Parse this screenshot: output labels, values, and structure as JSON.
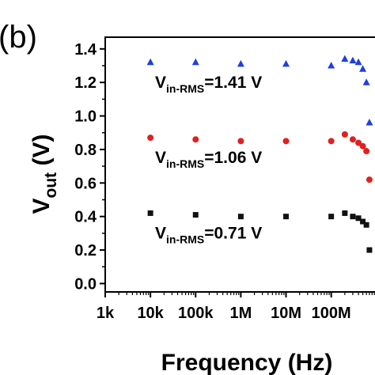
{
  "chart_data": {
    "type": "scatter",
    "panel_label": "(b)",
    "xlabel": "Frequency (Hz)",
    "ylabel_main": "V",
    "ylabel_sub": "out",
    "ylabel_unit": " (V)",
    "xscale": "log",
    "xlim": [
      1000,
      2000000000
    ],
    "ylim": [
      -0.05,
      1.47
    ],
    "x_ticks": [
      {
        "value": 1000,
        "label": "1k"
      },
      {
        "value": 10000,
        "label": "10k"
      },
      {
        "value": 100000,
        "label": "100k"
      },
      {
        "value": 1000000,
        "label": "1M"
      },
      {
        "value": 10000000,
        "label": "10M"
      },
      {
        "value": 100000000,
        "label": "100M"
      }
    ],
    "y_ticks": [
      0.0,
      0.2,
      0.4,
      0.6,
      0.8,
      1.0,
      1.2,
      1.4
    ],
    "y_tick_labels": [
      "0.0",
      "0.2",
      "0.4",
      "0.6",
      "0.8",
      "1.0",
      "1.2",
      "1.4"
    ],
    "grid": false,
    "series": [
      {
        "marker": "triangle",
        "color": "#1f3fe0",
        "annotation": {
          "main": "V",
          "sub": "in-RMS",
          "value": "=1.41 V"
        },
        "points": [
          [
            10000,
            1.32
          ],
          [
            100000,
            1.32
          ],
          [
            1000000,
            1.31
          ],
          [
            10000000,
            1.31
          ],
          [
            100000000,
            1.3
          ],
          [
            200000000,
            1.34
          ],
          [
            300000000,
            1.33
          ],
          [
            400000000,
            1.32
          ],
          [
            500000000,
            1.28
          ],
          [
            600000000,
            1.2
          ],
          [
            700000000,
            0.96
          ]
        ]
      },
      {
        "marker": "circle",
        "color": "#e02020",
        "annotation": {
          "main": "V",
          "sub": "in-RMS",
          "value": "=1.06 V"
        },
        "points": [
          [
            10000,
            0.87
          ],
          [
            100000,
            0.86
          ],
          [
            1000000,
            0.85
          ],
          [
            10000000,
            0.85
          ],
          [
            100000000,
            0.85
          ],
          [
            200000000,
            0.89
          ],
          [
            300000000,
            0.86
          ],
          [
            400000000,
            0.84
          ],
          [
            500000000,
            0.82
          ],
          [
            600000000,
            0.79
          ],
          [
            700000000,
            0.62
          ]
        ]
      },
      {
        "marker": "square",
        "color": "#111111",
        "annotation": {
          "main": "V",
          "sub": "in-RMS",
          "value": "=0.71 V"
        },
        "points": [
          [
            10000,
            0.42
          ],
          [
            100000,
            0.41
          ],
          [
            1000000,
            0.4
          ],
          [
            10000000,
            0.4
          ],
          [
            100000000,
            0.4
          ],
          [
            200000000,
            0.42
          ],
          [
            300000000,
            0.4
          ],
          [
            400000000,
            0.39
          ],
          [
            500000000,
            0.37
          ],
          [
            600000000,
            0.35
          ],
          [
            700000000,
            0.2
          ]
        ]
      }
    ]
  }
}
